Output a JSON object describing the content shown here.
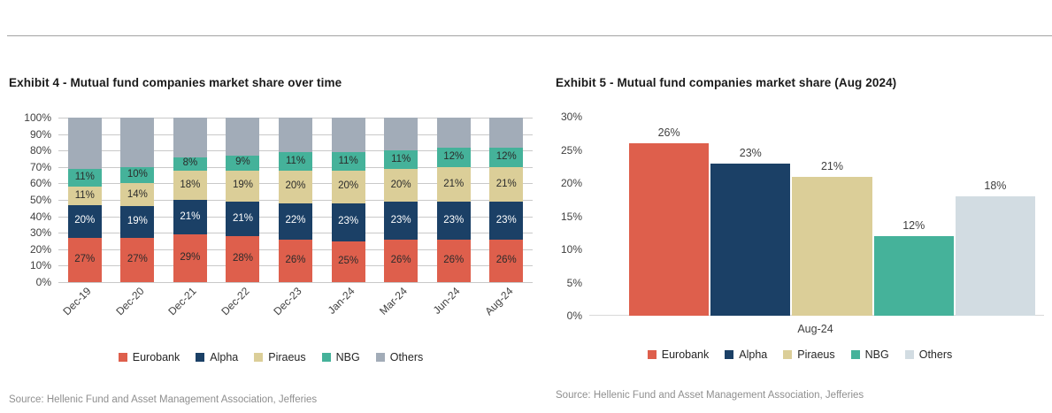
{
  "page": {
    "divider_color": "#a3a3a3"
  },
  "chart_data": [
    {
      "type": "stacked-bar",
      "title": "Exhibit 4 - Mutual fund companies market share over time",
      "categories": [
        "Dec-19",
        "Dec-20",
        "Dec-21",
        "Dec-22",
        "Dec-23",
        "Jan-24",
        "Mar-24",
        "Jun-24",
        "Aug-24"
      ],
      "series": [
        {
          "name": "Eurobank",
          "color": "#DE5F4C",
          "label_color": "#2B2B2B",
          "show_labels": true,
          "values": [
            27,
            27,
            29,
            28,
            26,
            25,
            26,
            26,
            26
          ]
        },
        {
          "name": "Alpha",
          "color": "#1B4066",
          "label_color": "#FFFFFF",
          "show_labels": true,
          "values": [
            20,
            19,
            21,
            21,
            22,
            23,
            23,
            23,
            23
          ]
        },
        {
          "name": "Piraeus",
          "color": "#DBCE98",
          "label_color": "#2B2B2B",
          "show_labels": true,
          "values": [
            11,
            14,
            18,
            19,
            20,
            20,
            20,
            21,
            21
          ]
        },
        {
          "name": "NBG",
          "color": "#45B29A",
          "label_color": "#2B2B2B",
          "show_labels": true,
          "values": [
            11,
            10,
            8,
            9,
            11,
            11,
            11,
            12,
            12
          ]
        },
        {
          "name": "Others",
          "color": "#A2ACB8",
          "label_color": null,
          "show_labels": false,
          "values": [
            31,
            30,
            24,
            23,
            21,
            21,
            20,
            18,
            18
          ]
        }
      ],
      "ylim": [
        0,
        100
      ],
      "y_ticks": [
        "100%",
        "90%",
        "80%",
        "70%",
        "60%",
        "50%",
        "40%",
        "30%",
        "20%",
        "10%",
        "0%"
      ],
      "grid": true,
      "legend_position": "bottom",
      "legend": [
        "Eurobank",
        "Alpha",
        "Piraeus",
        "NBG",
        "Others"
      ],
      "source": "Source: Hellenic Fund and Asset Management Association, Jefferies"
    },
    {
      "type": "bar",
      "title": "Exhibit 5 - Mutual fund companies market share (Aug 2024)",
      "x_group_label": "Aug-24",
      "categories": [
        "Eurobank",
        "Alpha",
        "Piraeus",
        "NBG",
        "Others"
      ],
      "values": [
        26,
        23,
        21,
        12,
        18
      ],
      "value_labels": [
        "26%",
        "23%",
        "21%",
        "12%",
        "18%"
      ],
      "colors": [
        "#DE5F4C",
        "#1B4066",
        "#DBCE98",
        "#45B29A",
        "#D2DCE2"
      ],
      "ylim": [
        0,
        30
      ],
      "y_ticks": [
        "30%",
        "25%",
        "20%",
        "15%",
        "10%",
        "5%",
        "0%"
      ],
      "grid": false,
      "legend_position": "bottom",
      "legend": [
        "Eurobank",
        "Alpha",
        "Piraeus",
        "NBG",
        "Others"
      ],
      "source": "Source: Hellenic Fund and Asset Management Association, Jefferies"
    }
  ]
}
